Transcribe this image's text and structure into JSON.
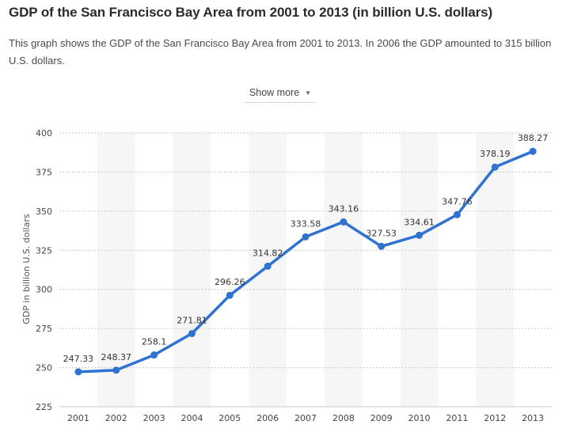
{
  "header": {
    "title": "GDP of the San Francisco Bay Area from 2001 to 2013 (in billion U.S. dollars)",
    "description": "This graph shows the GDP of the San Francisco Bay Area from 2001 to 2013. In 2006 the GDP amounted to 315 billion U.S. dollars.",
    "show_more_label": "Show more",
    "show_more_icon": "caret-down-icon"
  },
  "chart_data": {
    "type": "line",
    "title": "",
    "xlabel": "",
    "ylabel": "GDP in billion U.S. dollars",
    "categories": [
      "2001",
      "2002",
      "2003",
      "2004",
      "2005",
      "2006",
      "2007",
      "2008",
      "2009",
      "2010",
      "2011",
      "2012",
      "2013"
    ],
    "series": [
      {
        "values": [
          247.33,
          248.37,
          258.1,
          271.81,
          296.26,
          314.82,
          333.58,
          343.16,
          327.53,
          334.61,
          347.76,
          378.19,
          388.27
        ]
      }
    ],
    "data_labels": [
      "247.33",
      "248.37",
      "258.1",
      "271.81",
      "296.26",
      "314.82",
      "333.58",
      "343.16",
      "327.53",
      "334.61",
      "347.76",
      "378.19",
      "388.27"
    ],
    "ylim": [
      225,
      400
    ],
    "yticks": [
      225,
      250,
      275,
      300,
      325,
      350,
      375,
      400
    ],
    "grid": "horizontal dotted",
    "line_color": "#2f72d0",
    "band_color": "#f6f6f6"
  }
}
